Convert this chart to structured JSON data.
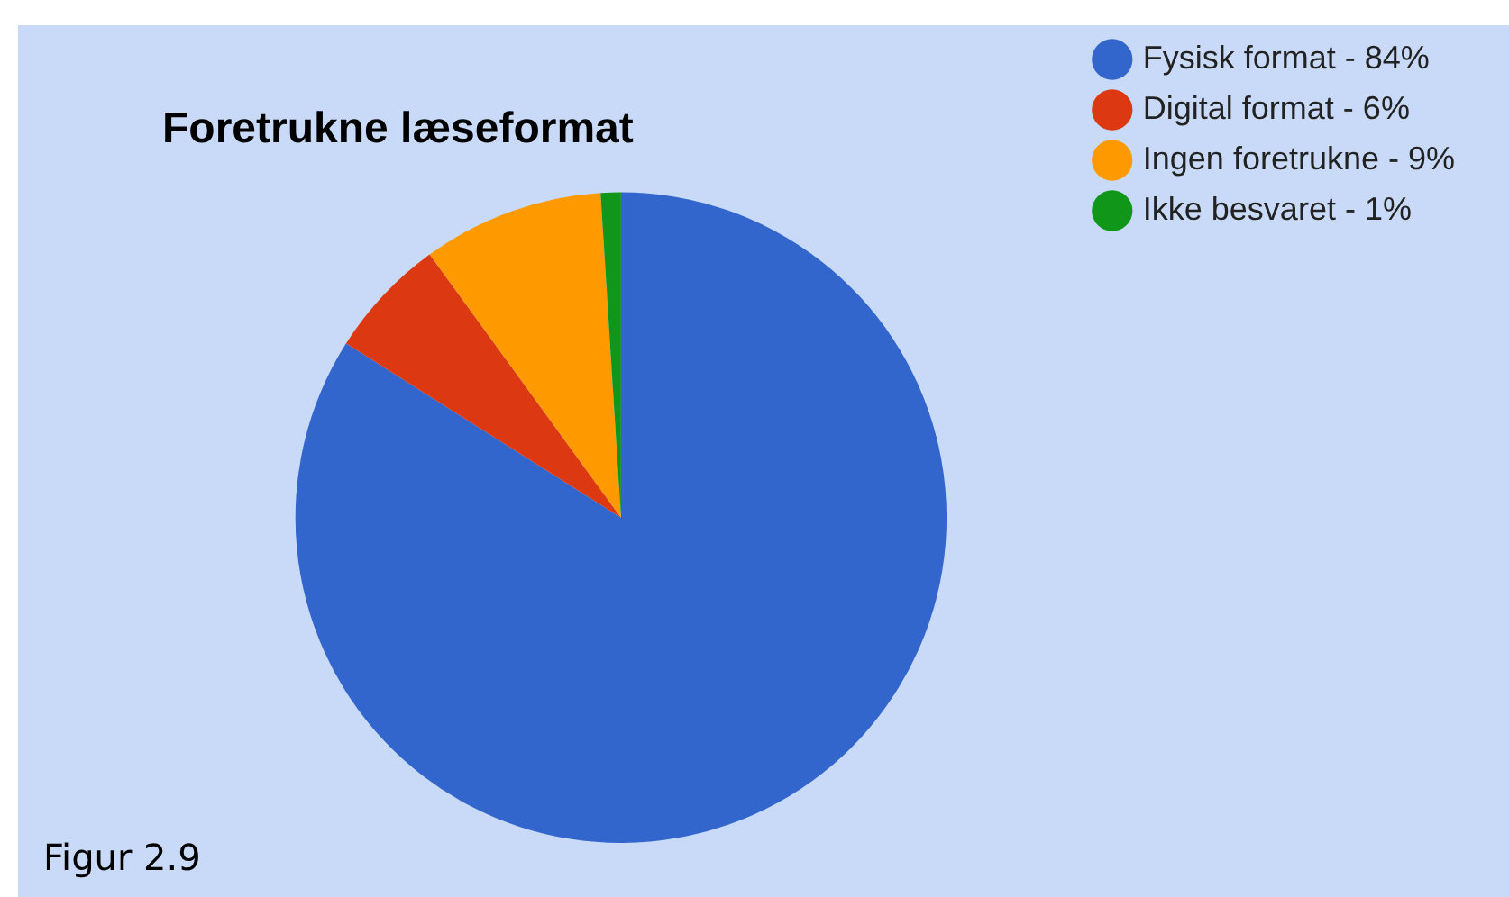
{
  "chart_data": {
    "type": "pie",
    "title": "Foretrukne læseformat",
    "categories": [
      "Fysisk format - 84%",
      "Digital format - 6%",
      "Ingen foretrukne - 9%",
      "Ikke besvaret - 1%"
    ],
    "values": [
      84,
      6,
      9,
      1
    ],
    "colors": [
      "#3366cc",
      "#dc3912",
      "#ff9900",
      "#109618"
    ],
    "legend": "right",
    "annotations": [
      "Figur 2.9"
    ]
  }
}
